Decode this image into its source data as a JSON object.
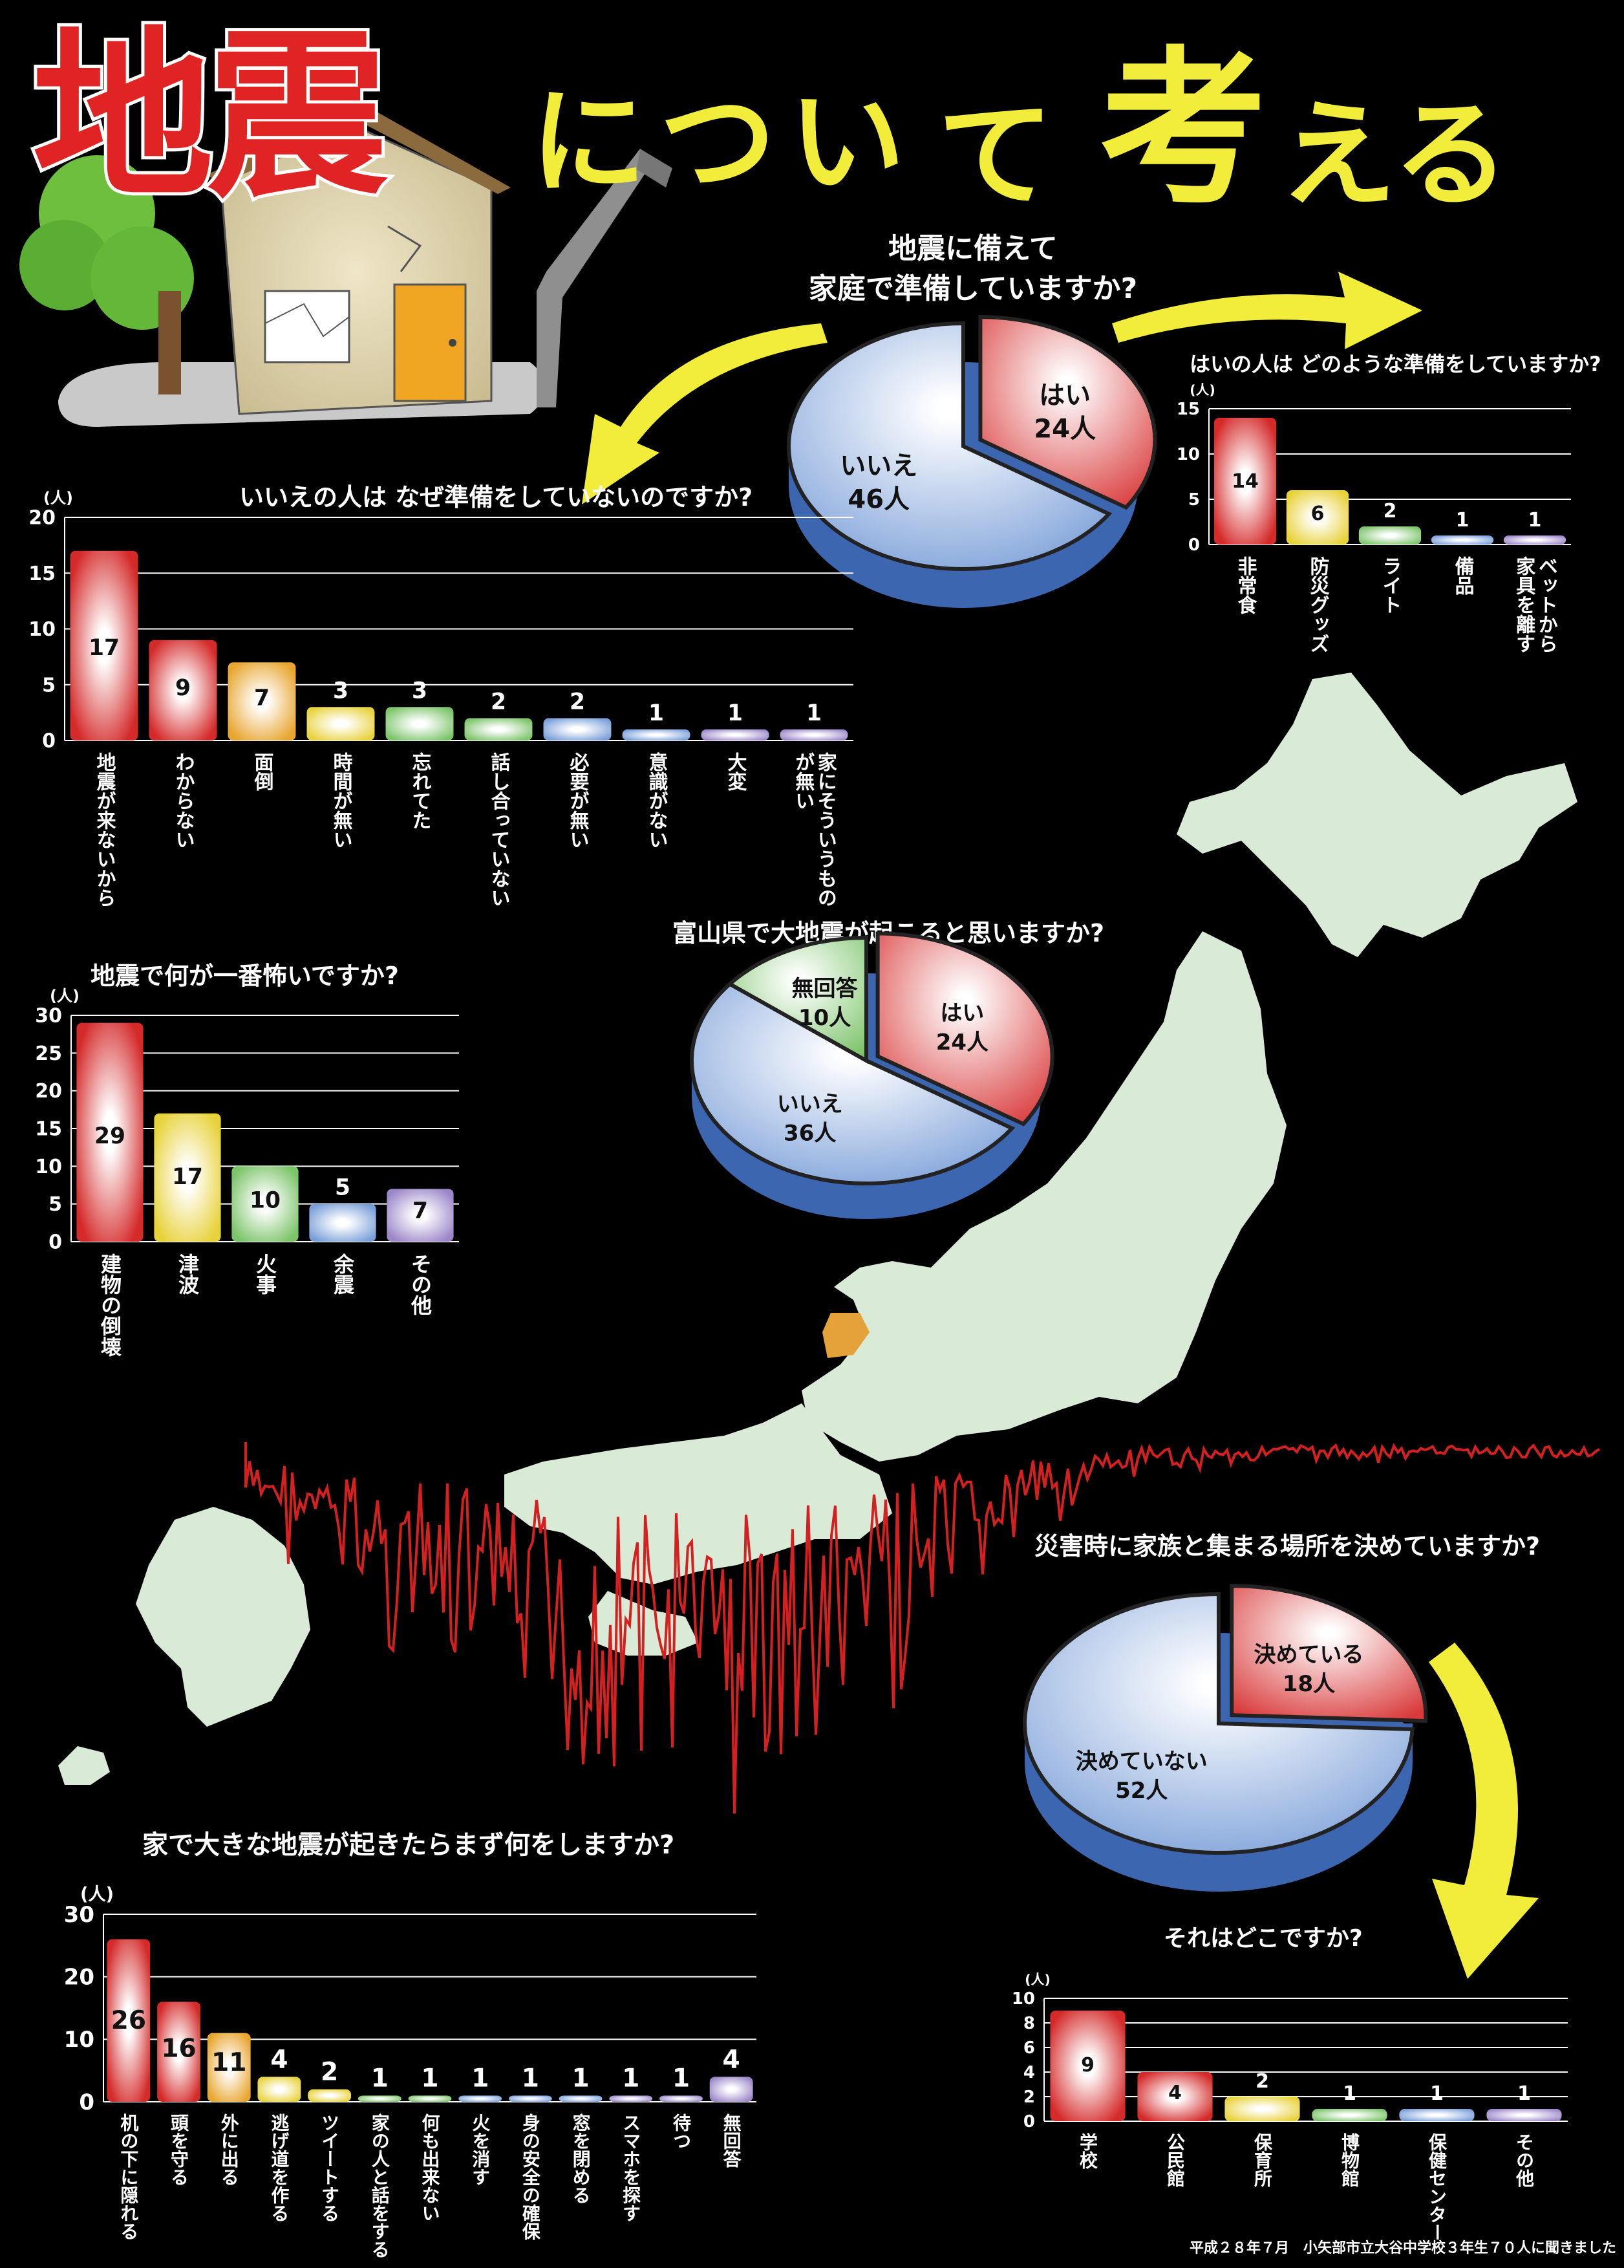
{
  "poster": {
    "title_part1": "地震",
    "title_part2": "につい",
    "title_part3": "て",
    "title_part4": "考",
    "title_part5": "える",
    "footer": "平成２８年７月　小矢部市立大谷中学校３年生７０人に聞きました"
  },
  "colors": {
    "red": "#d42a2a",
    "blue": "#7a9fd8",
    "green": "#7cc46a",
    "yellow": "#f2ec3a",
    "land": "#d9ead6"
  },
  "chart_data": [
    {
      "id": "prep",
      "type": "pie",
      "title_line1": "地震に備えて",
      "title_line2": "家庭で準備していますか?",
      "unit": "人",
      "slices": [
        {
          "label": "はい",
          "value": 24,
          "text": "24人",
          "color": "#d93a3a"
        },
        {
          "label": "いいえ",
          "value": 46,
          "text": "46人",
          "color": "#7a9fd8"
        }
      ]
    },
    {
      "id": "yes_prep",
      "type": "bar",
      "title": "はいの人は どのような準備をしていますか?",
      "unit": "(人)",
      "ylim": [
        0,
        15
      ],
      "yticks": [
        "0",
        "5",
        "10",
        "15"
      ],
      "categories": [
        "非常食",
        "防災グッズ",
        "ライト",
        "備品",
        "ベットから\n家具を離す"
      ],
      "values": [
        14,
        6,
        2,
        1,
        1
      ],
      "colors": [
        "#d42a2a",
        "#e8d23a",
        "#7cc46a",
        "#7a9fd8",
        "#9a86c8"
      ]
    },
    {
      "id": "no_prep",
      "type": "bar",
      "title": "いいえの人は なぜ準備をしていないのですか?",
      "unit": "(人)",
      "ylim": [
        0,
        20
      ],
      "yticks": [
        "0",
        "5",
        "10",
        "15",
        "20"
      ],
      "categories": [
        "地震が来ないから",
        "わからない",
        "面倒",
        "時間が無い",
        "忘れてた",
        "話し合っていない",
        "必要が無い",
        "意識がない",
        "大変",
        "家にそういうもの\nが無い"
      ],
      "values": [
        17,
        9,
        7,
        3,
        3,
        2,
        2,
        1,
        1,
        1
      ],
      "colors": [
        "#d42a2a",
        "#d42a2a",
        "#e8a630",
        "#e8d23a",
        "#7cc46a",
        "#7cc46a",
        "#7a9fd8",
        "#7a9fd8",
        "#9a86c8",
        "#9a86c8"
      ]
    },
    {
      "id": "toyama",
      "type": "pie",
      "title": "富山県で大地震が起こると思いますか?",
      "unit": "人",
      "slices": [
        {
          "label": "はい",
          "value": 24,
          "text": "24人",
          "color": "#d93a3a"
        },
        {
          "label": "いいえ",
          "value": 36,
          "text": "36人",
          "color": "#7a9fd8"
        },
        {
          "label": "無回答",
          "value": 10,
          "text": "10人",
          "color": "#7cc46a"
        }
      ]
    },
    {
      "id": "fear",
      "type": "bar",
      "title": "地震で何が一番怖いですか?",
      "unit": "(人)",
      "ylim": [
        0,
        30
      ],
      "yticks": [
        "0",
        "5",
        "10",
        "15",
        "20",
        "25",
        "30"
      ],
      "categories": [
        "建物の倒壊",
        "津波",
        "火事",
        "余震",
        "その他"
      ],
      "values": [
        29,
        17,
        10,
        5,
        7
      ],
      "colors": [
        "#d42a2a",
        "#e8d23a",
        "#7cc46a",
        "#7a9fd8",
        "#9a86c8"
      ]
    },
    {
      "id": "meeting",
      "type": "pie",
      "title": "災害時に家族と集まる場所を決めていますか?",
      "unit": "人",
      "slices": [
        {
          "label": "決めている",
          "value": 18,
          "text": "18人",
          "color": "#d93a3a"
        },
        {
          "label": "決めていない",
          "value": 52,
          "text": "52人",
          "color": "#7a9fd8"
        }
      ]
    },
    {
      "id": "where",
      "type": "bar",
      "title": "それはどこですか?",
      "unit": "(人)",
      "ylim": [
        0,
        10
      ],
      "yticks": [
        "0",
        "2",
        "4",
        "6",
        "8",
        "10"
      ],
      "categories": [
        "学校",
        "公民館",
        "保育所",
        "博物館",
        "保健センター",
        "その他"
      ],
      "values": [
        9,
        4,
        2,
        1,
        1,
        1
      ],
      "colors": [
        "#d42a2a",
        "#d42a2a",
        "#e8d23a",
        "#7cc46a",
        "#7a9fd8",
        "#9a86c8"
      ]
    },
    {
      "id": "first",
      "type": "bar",
      "title": "家で大きな地震が起きたらまず何をしますか?",
      "unit": "(人)",
      "ylim": [
        0,
        30
      ],
      "yticks": [
        "0",
        "10",
        "20",
        "30"
      ],
      "categories": [
        "机の下に隠れる",
        "頭を守る",
        "外に出る",
        "逃げ道を作る",
        "ツイートする",
        "家の人と話をする",
        "何も出来ない",
        "火を消す",
        "身の安全の確保",
        "窓を閉める",
        "スマホを探す",
        "待つ",
        "無回答"
      ],
      "values": [
        26,
        16,
        11,
        4,
        2,
        1,
        1,
        1,
        1,
        1,
        1,
        1,
        4
      ],
      "colors": [
        "#d42a2a",
        "#d42a2a",
        "#e8a630",
        "#e8d23a",
        "#e8d23a",
        "#7cc46a",
        "#7cc46a",
        "#7a9fd8",
        "#7a9fd8",
        "#7a9fd8",
        "#9a86c8",
        "#9a86c8",
        "#9a86c8"
      ]
    }
  ]
}
